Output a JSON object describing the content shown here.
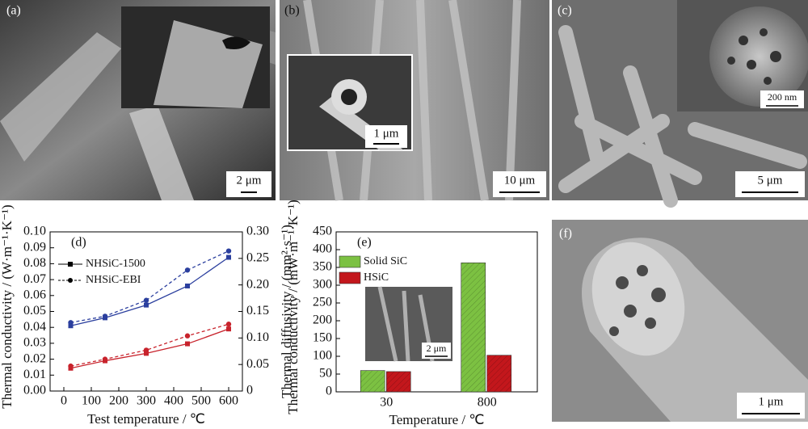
{
  "panels": [
    {
      "label": "(a)",
      "scale": "2 μm"
    },
    {
      "label": "(b)",
      "scale": "10 μm",
      "inset_scale": "1 μm"
    },
    {
      "label": "(c)",
      "scale": "5 μm",
      "inset_scale": "200 nm"
    },
    {
      "label": "(f)",
      "scale": "1 μm"
    }
  ],
  "chart_data": [
    {
      "type": "line",
      "panel_label": "(d)",
      "x_label": "Test temperature / ℃",
      "y_label": "Thermal conductivity / (W·m⁻¹·K⁻¹)",
      "y2_label": "Thermal diffusivity / (mm²·s⁻¹)",
      "x": [
        25,
        150,
        300,
        450,
        600
      ],
      "xlim": [
        -50,
        650
      ],
      "xticks": [
        0,
        100,
        200,
        300,
        400,
        500,
        600
      ],
      "ylim": [
        0,
        0.1
      ],
      "yticks": [
        {
          "value": 0,
          "label": "0.00"
        },
        0.01,
        0.02,
        0.03,
        0.04,
        0.05,
        0.06,
        0.07,
        0.08,
        0.09,
        {
          "value": 0.1,
          "label": "0.10"
        }
      ],
      "y2lim": [
        0,
        0.3
      ],
      "y2ticks": [
        0,
        0.05,
        {
          "value": 0.1,
          "label": "0.10"
        },
        0.15,
        {
          "value": 0.2,
          "label": "0.20"
        },
        0.25,
        {
          "value": 0.3,
          "label": "0.30"
        }
      ],
      "series": [
        {
          "name": "NHSiC-1500",
          "color": "#2b3f9e",
          "dash": false,
          "marker": "square",
          "values": [
            0.041,
            0.046,
            0.054,
            0.066,
            0.084
          ]
        },
        {
          "name": "NHSiC-EBI",
          "color": "#2b3f9e",
          "dash": true,
          "marker": "circle",
          "values": [
            0.043,
            0.047,
            0.057,
            0.076,
            0.088
          ]
        },
        {
          "color": "#c8232c",
          "dash": false,
          "marker": "square",
          "axis": "y2",
          "values": [
            0.043,
            0.057,
            0.071,
            0.089,
            0.117
          ]
        },
        {
          "color": "#c8232c",
          "dash": true,
          "marker": "circle",
          "axis": "y2",
          "values": [
            0.047,
            0.06,
            0.077,
            0.104,
            0.126
          ]
        }
      ]
    },
    {
      "type": "bar",
      "panel_label": "(e)",
      "x_label": "Temperature / ℃",
      "y_label": "Thermal conductivity / (mW·m⁻¹·K⁻¹)",
      "inset_scale": "2 μm",
      "categories": [
        "30",
        "800"
      ],
      "ylim": [
        0,
        450
      ],
      "yticks": [
        0,
        50,
        100,
        150,
        200,
        250,
        300,
        350,
        400,
        450
      ],
      "series": [
        {
          "name": "Solid SiC",
          "color": "#7cc142",
          "values": [
            60,
            363
          ]
        },
        {
          "name": "HSiC",
          "color": "#c3171c",
          "values": [
            57,
            103
          ]
        }
      ]
    }
  ]
}
